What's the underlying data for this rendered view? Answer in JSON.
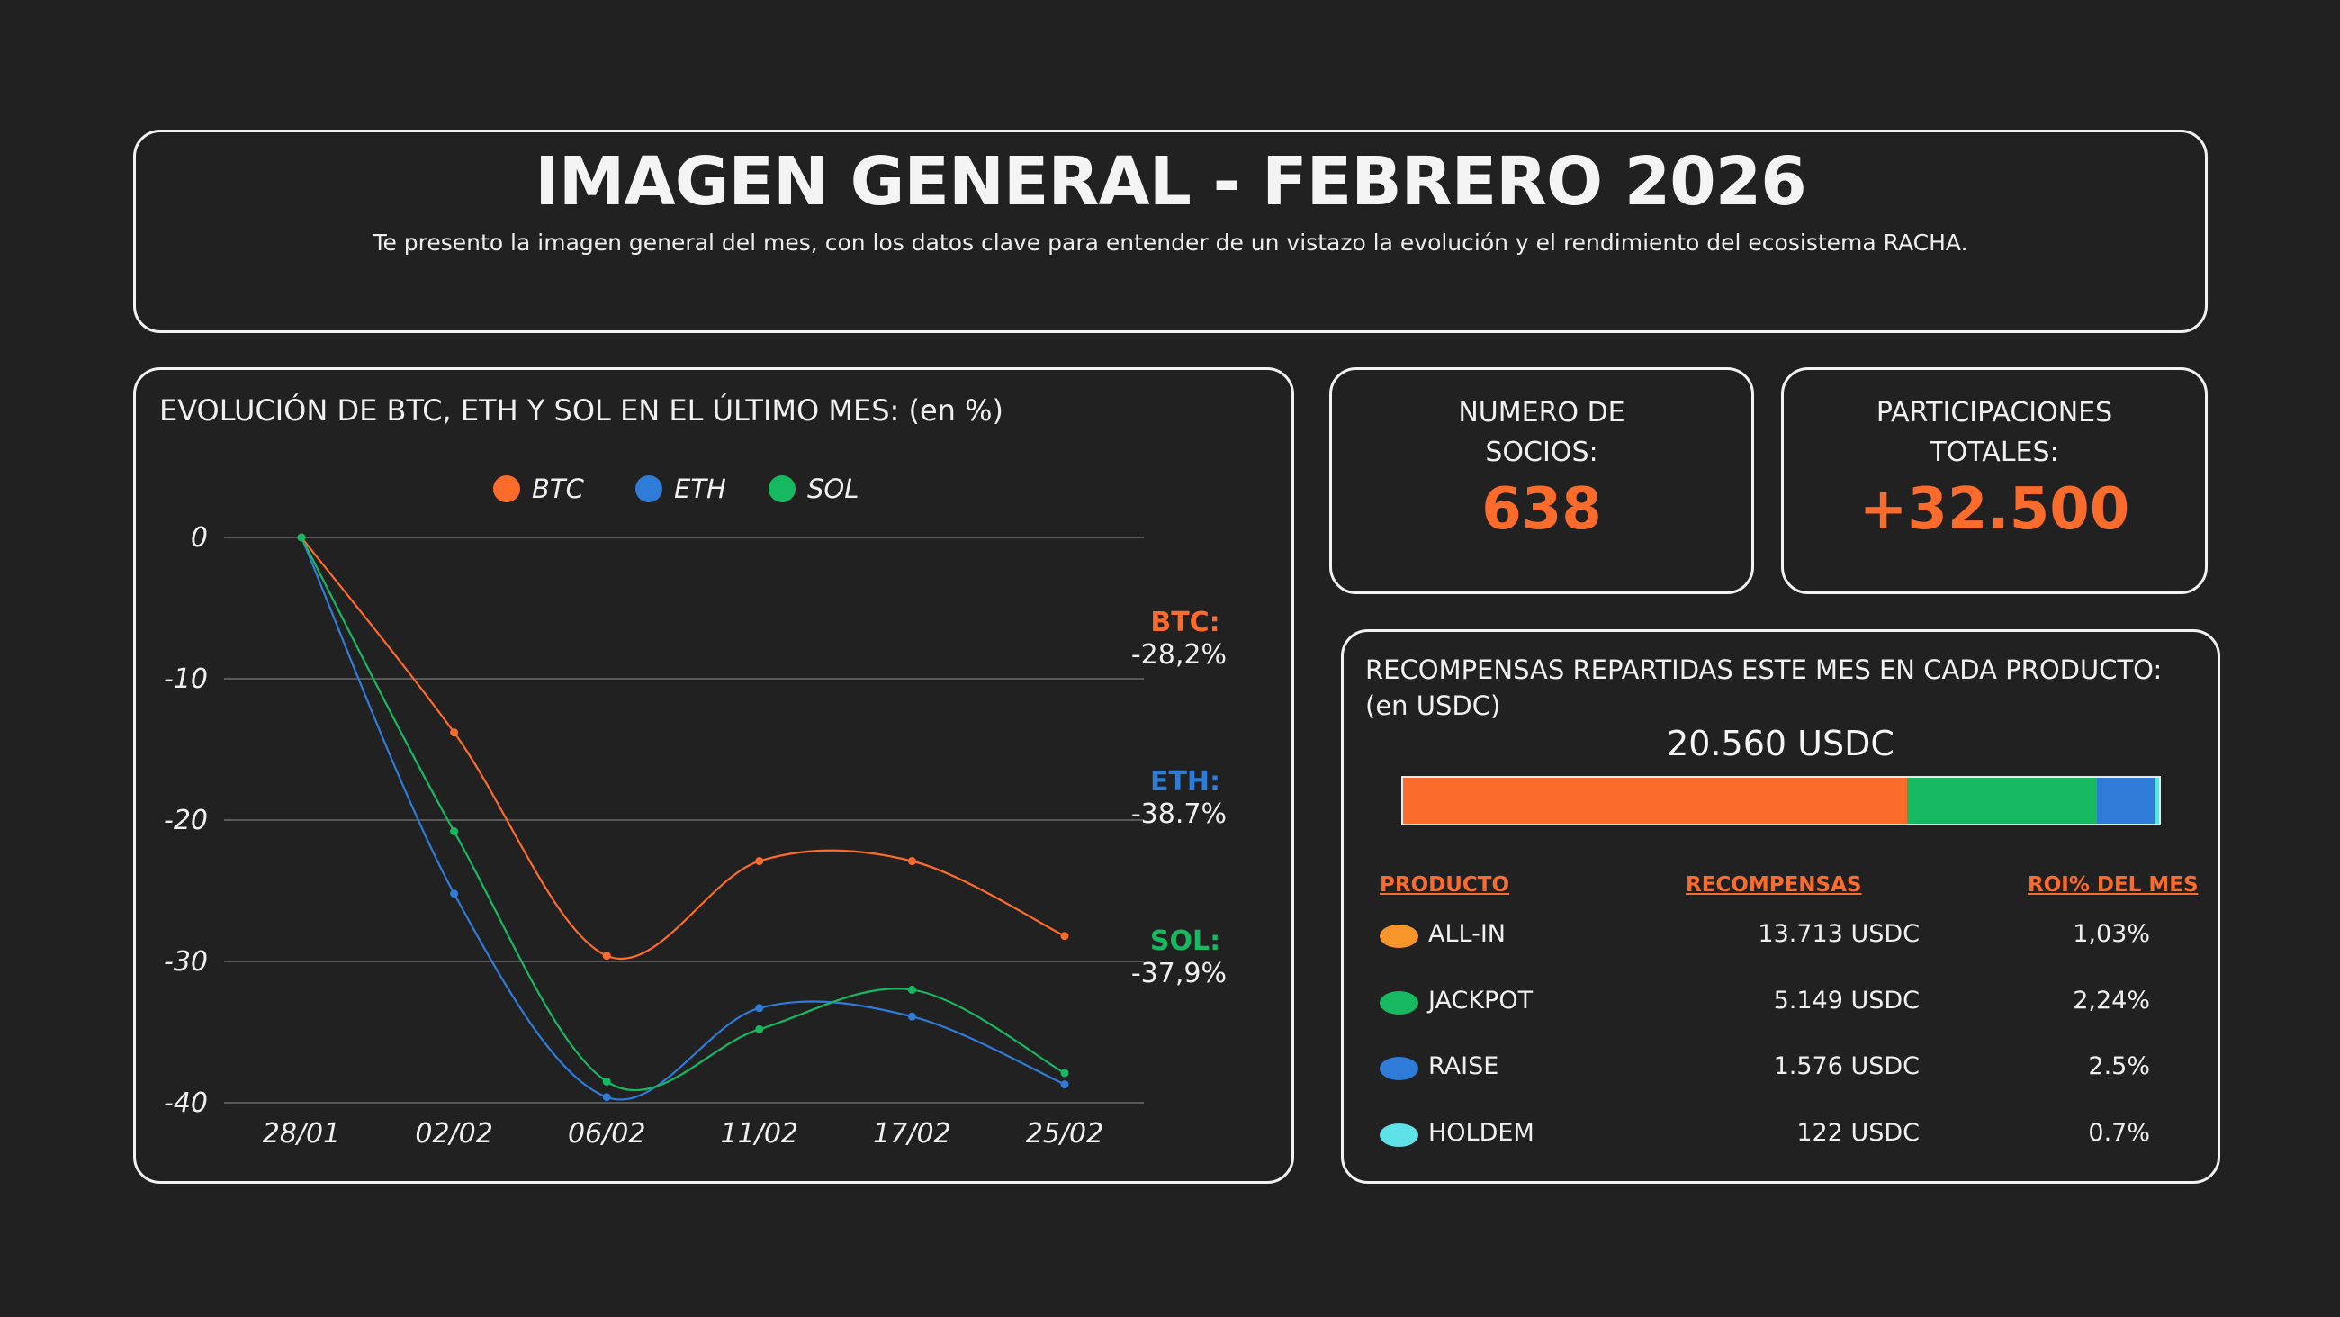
{
  "header": {
    "title": "IMAGEN GENERAL - FEBRERO 2026",
    "subtitle": "Te presento la imagen general del mes, con los datos clave para entender de un vistazo la evolución y el rendimiento del ecosistema RACHA."
  },
  "chart_card": {
    "title": "EVOLUCIÓN DE BTC, ETH Y SOL EN EL ÚLTIMO MES: (en %)",
    "final_labels": [
      {
        "name": "BTC:",
        "value": "-28,2%",
        "color": "#fb6b2c"
      },
      {
        "name": "ETH:",
        "value": "-38.7%",
        "color": "#2f7bd8"
      },
      {
        "name": "SOL:",
        "value": "-37,9%",
        "color": "#16b960"
      }
    ]
  },
  "chart_data": {
    "type": "line",
    "x": [
      "28/01",
      "02/02",
      "06/02",
      "11/02",
      "17/02",
      "25/02"
    ],
    "ylim": [
      -40,
      0
    ],
    "yticks": [
      0,
      -10,
      -20,
      -30,
      -40
    ],
    "grid": true,
    "legend_position": "top",
    "series": [
      {
        "name": "BTC",
        "color": "#fb6b2c",
        "values": [
          0,
          -13.8,
          -29.6,
          -22.9,
          -22.9,
          -28.2
        ]
      },
      {
        "name": "ETH",
        "color": "#2f7bd8",
        "values": [
          0,
          -25.2,
          -39.6,
          -33.3,
          -33.9,
          -38.7
        ]
      },
      {
        "name": "SOL",
        "color": "#16b960",
        "values": [
          0,
          -20.8,
          -38.5,
          -34.8,
          -32.0,
          -37.9
        ]
      }
    ]
  },
  "stats": {
    "members_label": "NUMERO DE SOCIOS:",
    "members_value": "638",
    "participations_label": "PARTICIPACIONES TOTALES:",
    "participations_value": "+32.500"
  },
  "rewards": {
    "title_line1": "RECOMPENSAS REPARTIDAS ESTE MES EN CADA PRODUCTO:",
    "title_line2": "(en USDC)",
    "total": "20.560 USDC",
    "headers": {
      "product": "PRODUCTO",
      "rewards": "RECOMPENSAS",
      "roi": "ROI% DEL MES"
    },
    "products": [
      {
        "name": "ALL-IN",
        "reward": "13.713 USDC",
        "roi": "1,03%",
        "amount": 13713,
        "dot_color": "#f7952a",
        "bar_color": "#fb6b2c"
      },
      {
        "name": "JACKPOT",
        "reward": "5.149 USDC",
        "roi": "2,24%",
        "amount": 5149,
        "dot_color": "#16b960",
        "bar_color": "#16b960"
      },
      {
        "name": "RAISE",
        "reward": "1.576 USDC",
        "roi": "2.5%",
        "amount": 1576,
        "dot_color": "#2f7bd8",
        "bar_color": "#2f7bd8"
      },
      {
        "name": "HOLDEM",
        "reward": "122 USDC",
        "roi": "0.7%",
        "amount": 122,
        "dot_color": "#5fe1e8",
        "bar_color": "#5fe1e8"
      }
    ]
  }
}
